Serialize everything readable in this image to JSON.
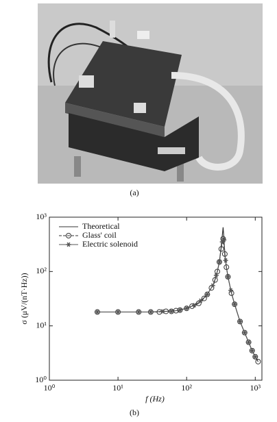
{
  "figure_a": {
    "caption": "(a)"
  },
  "chart_data": {
    "type": "line",
    "caption": "(b)",
    "xlabel": "f (Hz)",
    "ylabel": "σ (μV/(nT·Hz))",
    "log_x": true,
    "log_y": true,
    "legend": "upper left",
    "xlim": [
      1,
      1250
    ],
    "ylim": [
      1,
      1000
    ],
    "xticks": [
      {
        "value": 1,
        "label": "10⁰"
      },
      {
        "value": 10,
        "label": "10¹"
      },
      {
        "value": 100,
        "label": "10²"
      },
      {
        "value": 1000,
        "label": "10³"
      }
    ],
    "yticks": [
      {
        "value": 1,
        "label": "10⁰"
      },
      {
        "value": 10,
        "label": "10¹"
      },
      {
        "value": 100,
        "label": "10²"
      },
      {
        "value": 1000,
        "label": "10³"
      }
    ],
    "series": [
      {
        "name": "Theoretical",
        "color": "#333333",
        "marker": "none",
        "x": [
          5,
          10,
          20,
          30,
          50,
          70,
          100,
          150,
          200,
          250,
          280,
          300,
          320,
          340,
          350,
          360,
          380,
          400,
          450,
          500,
          600,
          700,
          800,
          900,
          1000,
          1100
        ],
        "values": [
          18,
          18,
          18,
          18,
          18.5,
          19,
          21,
          26,
          38,
          60,
          100,
          150,
          300,
          650,
          400,
          200,
          120,
          80,
          40,
          25,
          12,
          7.5,
          5,
          3.5,
          2.7,
          2.2
        ]
      },
      {
        "name": "Glass' coil",
        "color": "#333333",
        "marker": "circle",
        "x": [
          5,
          10,
          20,
          30,
          40,
          50,
          60,
          70,
          80,
          100,
          120,
          150,
          180,
          200,
          230,
          260,
          280,
          300,
          320,
          340,
          360,
          380,
          400,
          450,
          500,
          600,
          700,
          800,
          900,
          1000,
          1100
        ],
        "values": [
          18,
          18,
          18,
          18,
          18,
          18.5,
          18.5,
          19,
          19.5,
          21,
          23,
          26,
          32,
          38,
          50,
          70,
          100,
          150,
          260,
          400,
          210,
          120,
          80,
          40,
          25,
          12,
          7.5,
          5,
          3.5,
          2.7,
          2.2
        ]
      },
      {
        "name": "Electric solenoid",
        "color": "#555555",
        "marker": "star",
        "x": [
          5,
          10,
          20,
          30,
          45,
          60,
          80,
          100,
          130,
          160,
          200,
          240,
          270,
          300,
          330,
          350,
          370,
          400,
          440,
          500,
          600,
          700,
          800,
          900,
          1000
        ],
        "values": [
          18,
          18,
          18,
          18,
          18.5,
          18.5,
          19.5,
          21,
          24,
          29,
          38,
          55,
          85,
          150,
          350,
          380,
          160,
          80,
          45,
          25,
          12,
          7.5,
          5,
          3.5,
          2.7
        ]
      }
    ]
  }
}
